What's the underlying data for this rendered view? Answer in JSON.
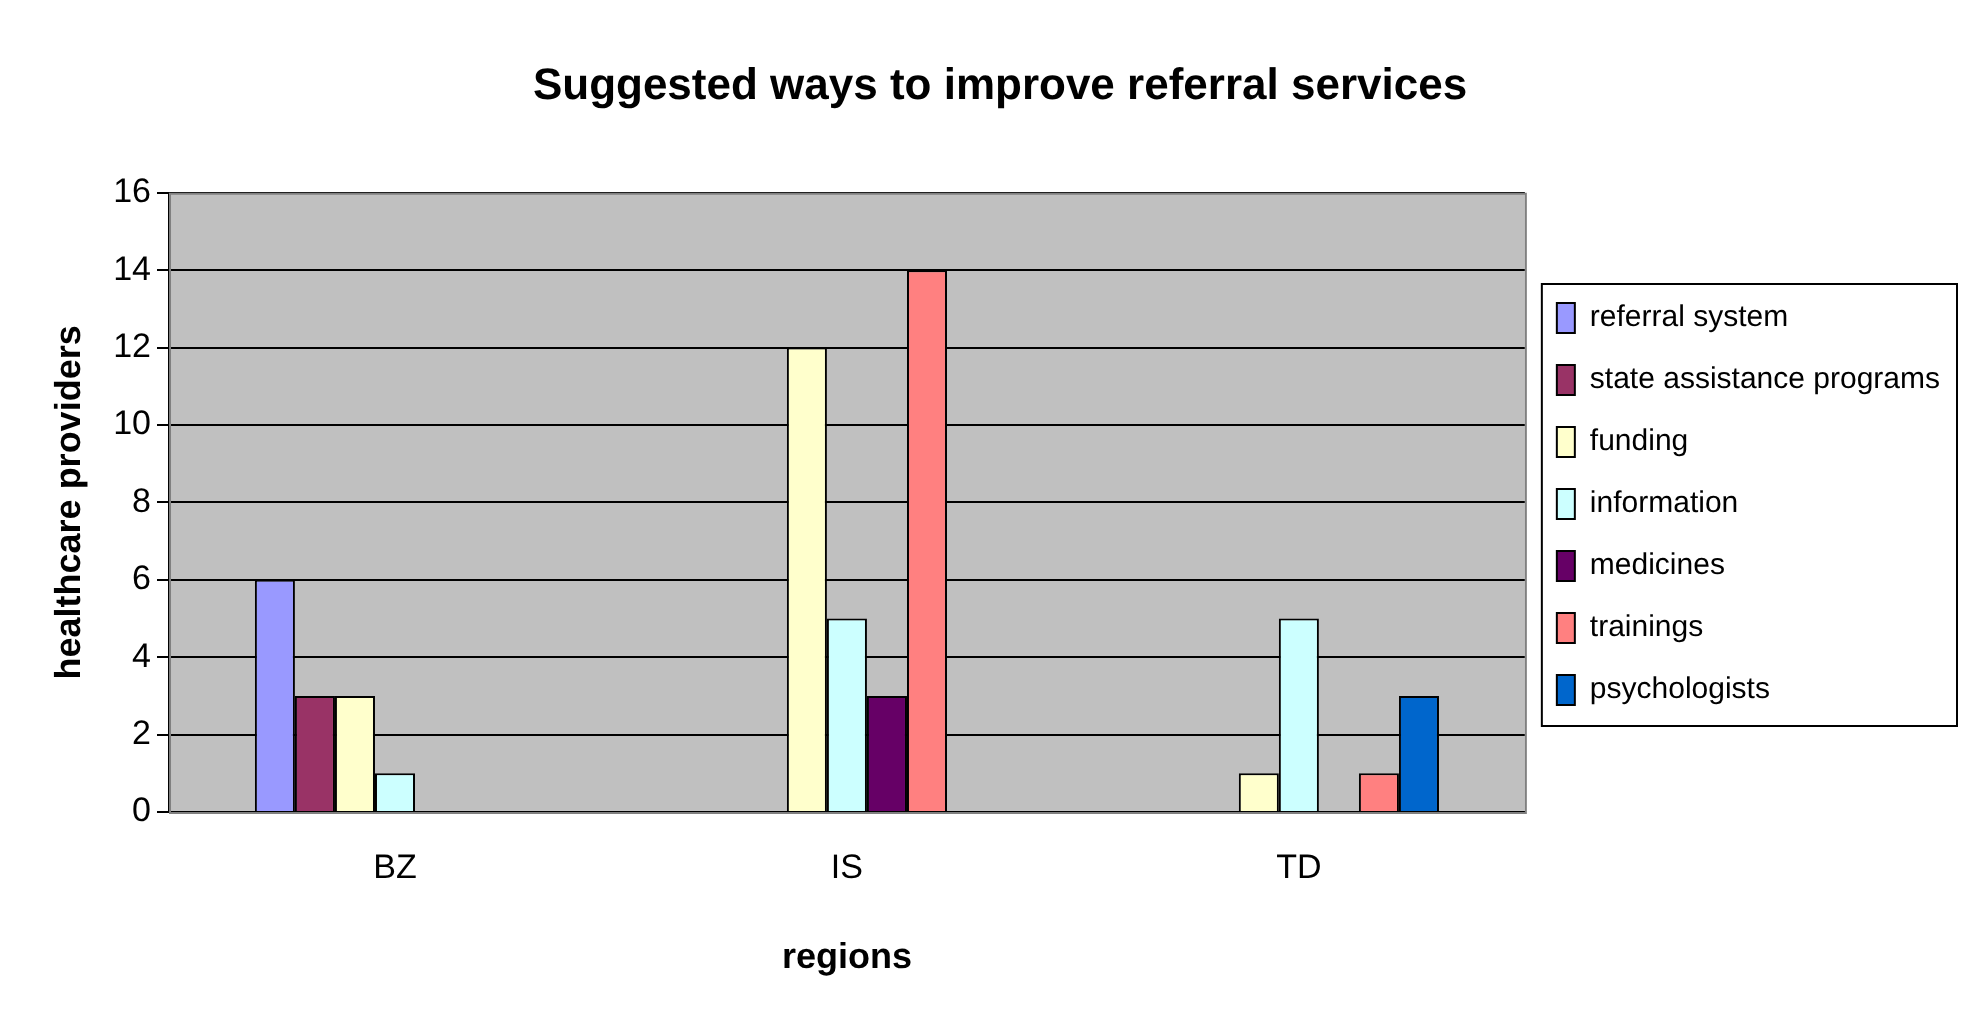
{
  "chart_data": {
    "type": "bar",
    "title": "Suggested ways to improve referral services",
    "xlabel": "regions",
    "ylabel": "healthcare providers",
    "categories": [
      "BZ",
      "IS",
      "TD"
    ],
    "series": [
      {
        "name": "referral system",
        "color": "#9999ff",
        "values": [
          6,
          0,
          0
        ]
      },
      {
        "name": "state assistance programs",
        "color": "#993366",
        "values": [
          3,
          0,
          0
        ]
      },
      {
        "name": "funding",
        "color": "#ffffcc",
        "values": [
          3,
          12,
          1
        ]
      },
      {
        "name": "information",
        "color": "#ccffff",
        "values": [
          1,
          5,
          5
        ]
      },
      {
        "name": "medicines",
        "color": "#660066",
        "values": [
          0,
          3,
          0
        ]
      },
      {
        "name": "trainings",
        "color": "#ff8080",
        "values": [
          0,
          14,
          1
        ]
      },
      {
        "name": "psychologists",
        "color": "#0066cc",
        "values": [
          0,
          0,
          3
        ]
      }
    ],
    "ylim": [
      0,
      16
    ],
    "yticks": [
      0,
      2,
      4,
      6,
      8,
      10,
      12,
      14,
      16
    ],
    "grid": "y",
    "legend": "right"
  }
}
